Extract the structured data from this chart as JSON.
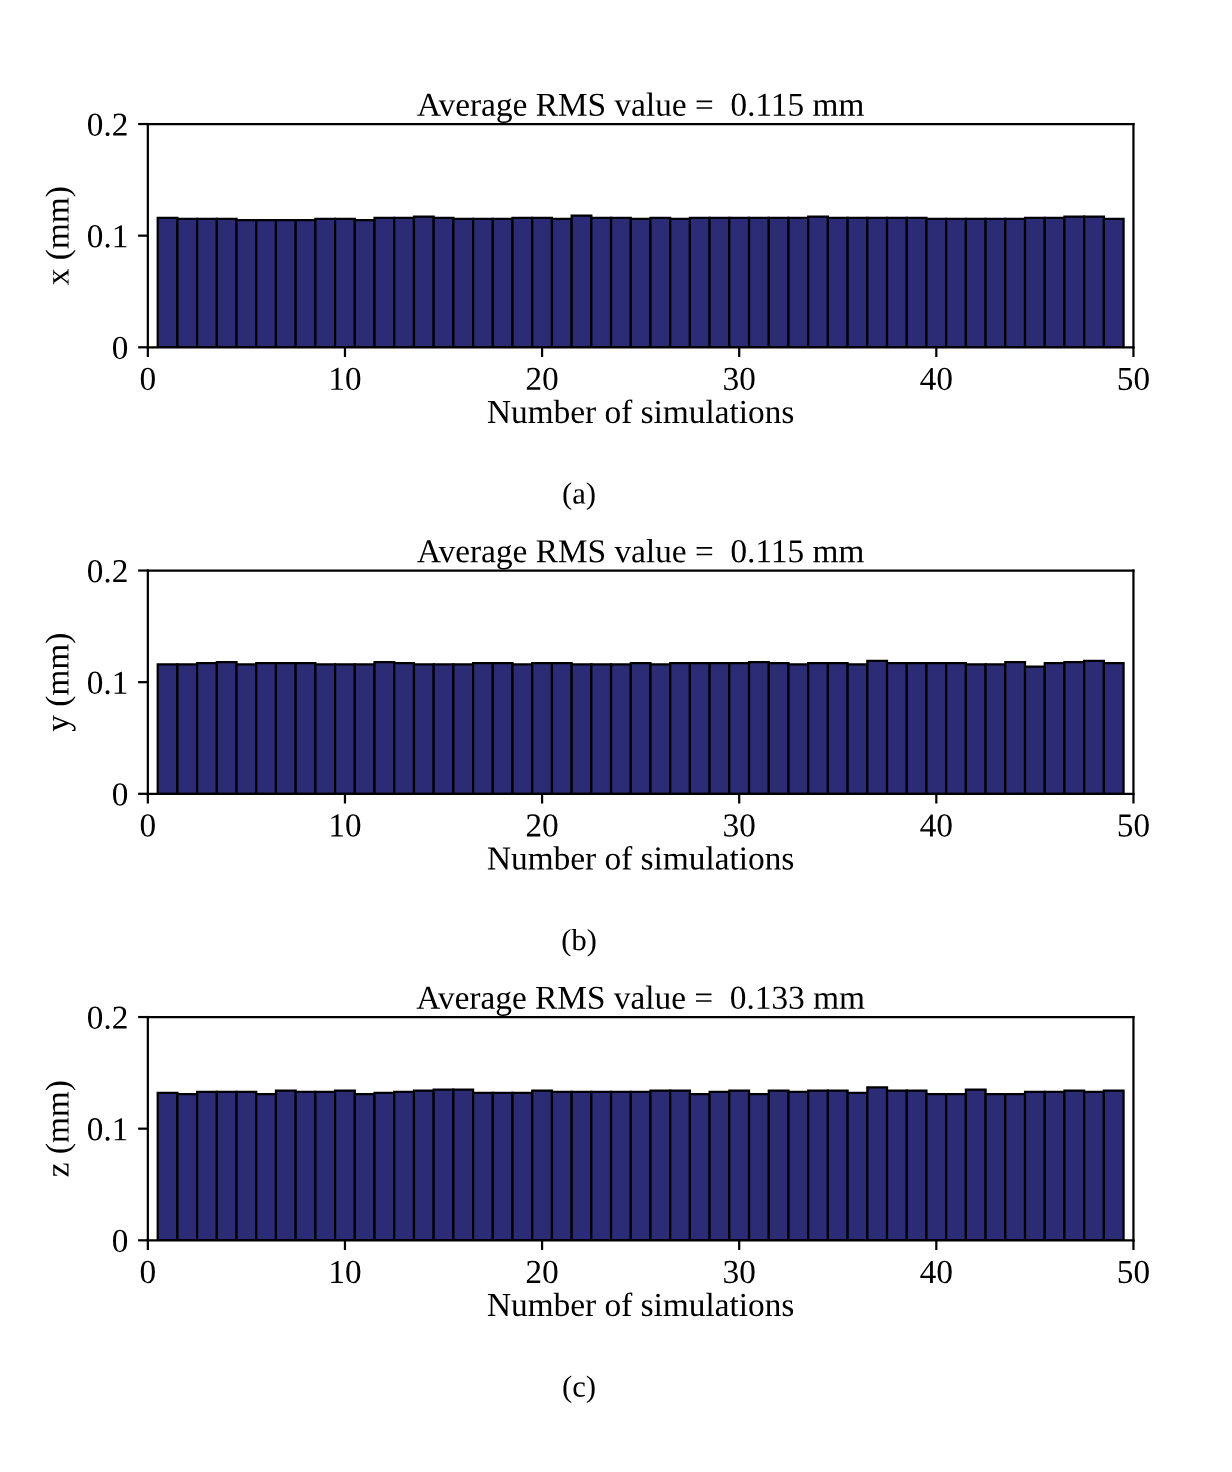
{
  "chart_data": [
    {
      "type": "bar",
      "title": "Average RMS value =  0.115 mm",
      "xlabel": "Number of simulations",
      "ylabel": "x (mm)",
      "annotations": [
        "(a)"
      ],
      "color": "#2b2b76",
      "xlim": [
        0,
        50
      ],
      "xticks": [
        0,
        10,
        20,
        30,
        40,
        50
      ],
      "ylim": [
        0,
        0.2
      ],
      "yticks": [
        0,
        0.1,
        0.2
      ],
      "grid": false,
      "x": [
        1,
        2,
        3,
        4,
        5,
        6,
        7,
        8,
        9,
        10,
        11,
        12,
        13,
        14,
        15,
        16,
        17,
        18,
        19,
        20,
        21,
        22,
        23,
        24,
        25,
        26,
        27,
        28,
        29,
        30,
        31,
        32,
        33,
        34,
        35,
        36,
        37,
        38,
        39,
        40,
        41,
        42,
        43,
        44,
        45,
        46,
        47,
        48,
        49
      ],
      "values": [
        0.116,
        0.115,
        0.115,
        0.115,
        0.114,
        0.114,
        0.114,
        0.114,
        0.115,
        0.115,
        0.114,
        0.116,
        0.116,
        0.117,
        0.116,
        0.115,
        0.115,
        0.115,
        0.116,
        0.116,
        0.115,
        0.118,
        0.116,
        0.116,
        0.115,
        0.116,
        0.115,
        0.116,
        0.116,
        0.116,
        0.116,
        0.116,
        0.116,
        0.117,
        0.116,
        0.116,
        0.116,
        0.116,
        0.116,
        0.115,
        0.115,
        0.115,
        0.115,
        0.115,
        0.116,
        0.116,
        0.117,
        0.117,
        0.115
      ]
    },
    {
      "type": "bar",
      "title": "Average RMS value =  0.115 mm",
      "xlabel": "Number of simulations",
      "ylabel": "y (mm)",
      "annotations": [
        "(b)"
      ],
      "color": "#2b2b76",
      "xlim": [
        0,
        50
      ],
      "xticks": [
        0,
        10,
        20,
        30,
        40,
        50
      ],
      "ylim": [
        0,
        0.2
      ],
      "yticks": [
        0,
        0.1,
        0.2
      ],
      "grid": false,
      "x": [
        1,
        2,
        3,
        4,
        5,
        6,
        7,
        8,
        9,
        10,
        11,
        12,
        13,
        14,
        15,
        16,
        17,
        18,
        19,
        20,
        21,
        22,
        23,
        24,
        25,
        26,
        27,
        28,
        29,
        30,
        31,
        32,
        33,
        34,
        35,
        36,
        37,
        38,
        39,
        40,
        41,
        42,
        43,
        44,
        45,
        46,
        47,
        48,
        49
      ],
      "values": [
        0.116,
        0.116,
        0.117,
        0.118,
        0.116,
        0.117,
        0.117,
        0.117,
        0.116,
        0.116,
        0.116,
        0.118,
        0.117,
        0.116,
        0.116,
        0.116,
        0.117,
        0.117,
        0.116,
        0.117,
        0.117,
        0.116,
        0.116,
        0.116,
        0.117,
        0.116,
        0.117,
        0.117,
        0.117,
        0.117,
        0.118,
        0.117,
        0.116,
        0.117,
        0.117,
        0.116,
        0.119,
        0.117,
        0.117,
        0.117,
        0.117,
        0.116,
        0.116,
        0.118,
        0.114,
        0.117,
        0.118,
        0.119,
        0.117
      ]
    },
    {
      "type": "bar",
      "title": "Average RMS value =  0.133 mm",
      "xlabel": "Number of simulations",
      "ylabel": "z (mm)",
      "annotations": [
        "(c)"
      ],
      "color": "#2b2b76",
      "xlim": [
        0,
        50
      ],
      "xticks": [
        0,
        10,
        20,
        30,
        40,
        50
      ],
      "ylim": [
        0,
        0.2
      ],
      "yticks": [
        0,
        0.1,
        0.2
      ],
      "grid": false,
      "x": [
        1,
        2,
        3,
        4,
        5,
        6,
        7,
        8,
        9,
        10,
        11,
        12,
        13,
        14,
        15,
        16,
        17,
        18,
        19,
        20,
        21,
        22,
        23,
        24,
        25,
        26,
        27,
        28,
        29,
        30,
        31,
        32,
        33,
        34,
        35,
        36,
        37,
        38,
        39,
        40,
        41,
        42,
        43,
        44,
        45,
        46,
        47,
        48,
        49
      ],
      "values": [
        0.132,
        0.131,
        0.133,
        0.133,
        0.133,
        0.131,
        0.134,
        0.133,
        0.133,
        0.134,
        0.131,
        0.132,
        0.133,
        0.134,
        0.135,
        0.135,
        0.132,
        0.132,
        0.132,
        0.134,
        0.133,
        0.133,
        0.133,
        0.133,
        0.133,
        0.134,
        0.134,
        0.131,
        0.133,
        0.134,
        0.131,
        0.134,
        0.133,
        0.134,
        0.134,
        0.132,
        0.137,
        0.134,
        0.134,
        0.131,
        0.131,
        0.135,
        0.131,
        0.131,
        0.133,
        0.133,
        0.134,
        0.133,
        0.134
      ]
    }
  ]
}
